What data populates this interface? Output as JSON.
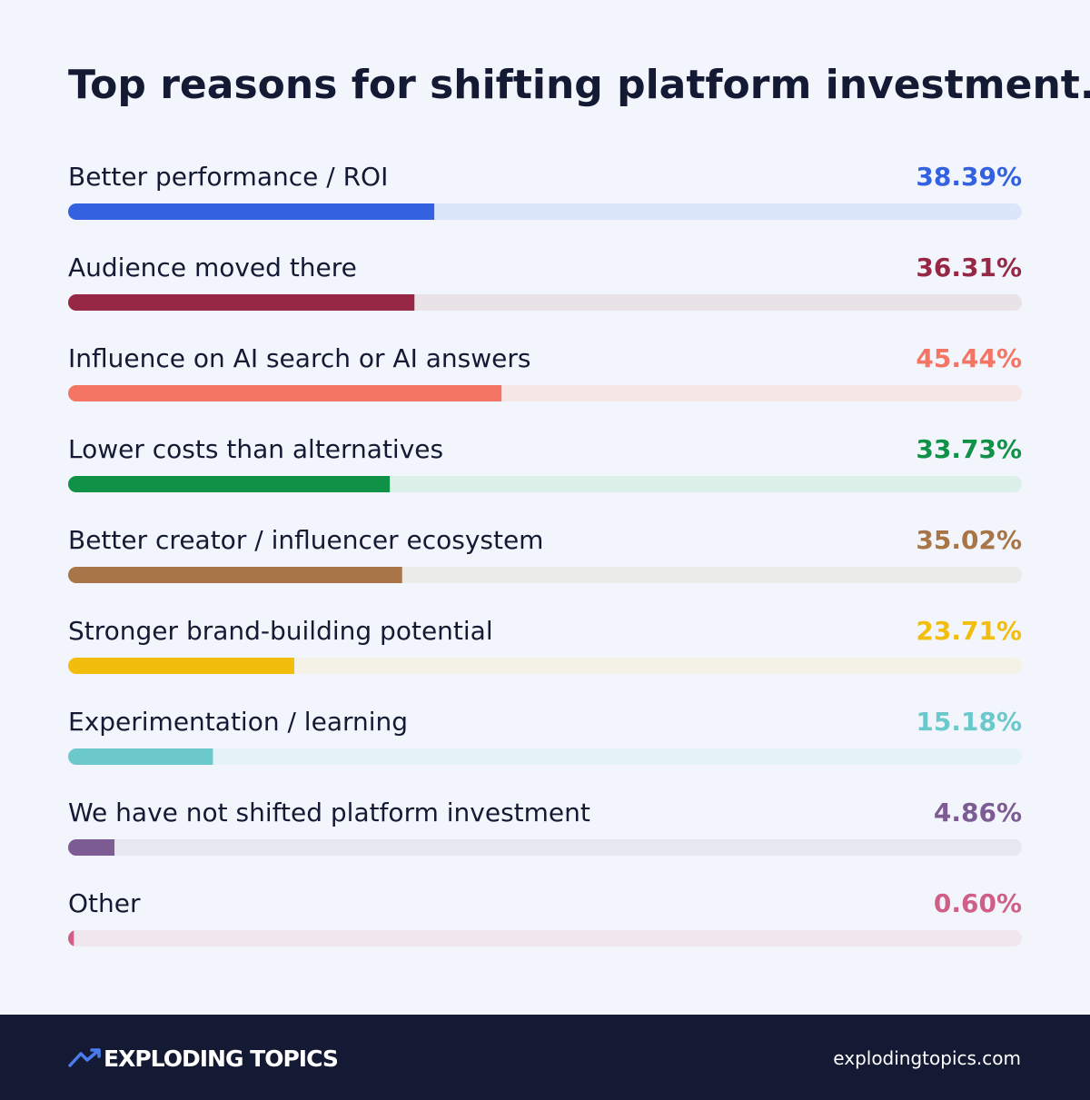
{
  "chart_data": {
    "type": "progress-bar",
    "title": "Top reasons for shifting platform investment.",
    "categories": [
      "Better performance / ROI",
      "Audience moved there",
      "Influence on AI search or AI answers",
      "Lower costs than alternatives",
      "Better creator / influencer ecosystem",
      "Stronger brand-building potential",
      "Experimentation / learning",
      "We have not shifted platform investment",
      "Other"
    ],
    "values": [
      38.39,
      36.31,
      45.44,
      33.73,
      35.02,
      23.71,
      15.18,
      4.86,
      0.6
    ],
    "value_labels": [
      "38.39%",
      "36.31%",
      "45.44%",
      "33.73%",
      "35.02%",
      "23.71%",
      "15.18%",
      "4.86%",
      "0.60%"
    ],
    "colors": [
      "#3461e0",
      "#962846",
      "#f57565",
      "#0f9248",
      "#a77548",
      "#f2bd0d",
      "#6cc9cb",
      "#7d5b93",
      "#cf5f86"
    ],
    "track_colors": [
      "#dce6fb",
      "#e9e3e8",
      "#f7e6e6",
      "#dcefe9",
      "#ebebea",
      "#f4f2e6",
      "#e3f3f7",
      "#e7e7ef",
      "#f0e6ee"
    ],
    "xlim": [
      0,
      100
    ]
  },
  "footer": {
    "brand": "EXPLODING TOPICS",
    "url": "explodingtopics.com"
  }
}
